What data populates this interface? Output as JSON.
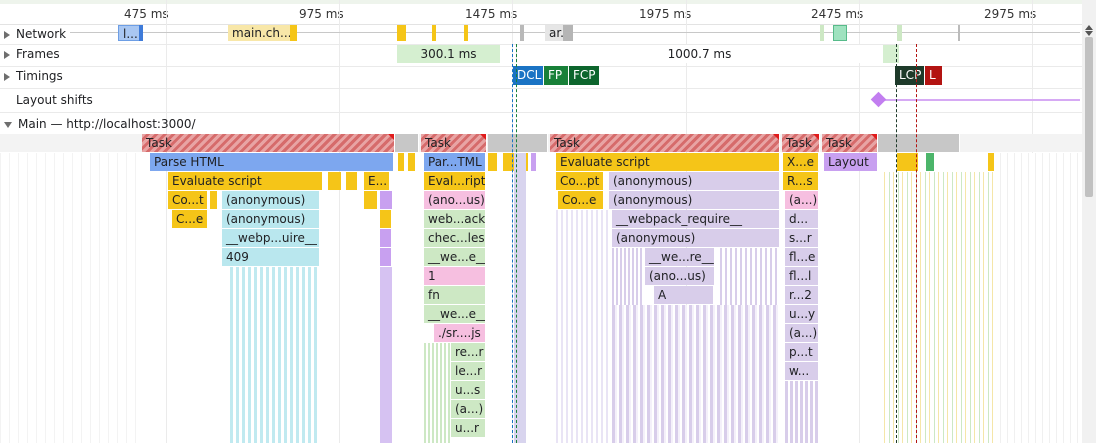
{
  "ruler": {
    "ticks": [
      "475 ms",
      "975 ms",
      "1475 ms",
      "1975 ms",
      "2475 ms",
      "2975 ms"
    ]
  },
  "tracks": {
    "network": "Network",
    "frames": "Frames",
    "timings": "Timings",
    "layout_shifts": "Layout shifts",
    "main": "Main — http://localhost:3000/"
  },
  "network_requests": [
    {
      "label": "l...",
      "color": "#a9c7f2"
    },
    {
      "label": "main.ch...",
      "color": "#f8e7a8"
    },
    {
      "label": "ar...",
      "color": "#e6e6e6"
    }
  ],
  "frames": [
    "300.1 ms",
    "1000.7 ms"
  ],
  "timings": {
    "dcl": "DCL",
    "fp": "FP",
    "fcp": "FCP",
    "lcp": "LCP",
    "l": "L"
  },
  "timing_colors": {
    "dcl": "#1a73c4",
    "fp": "#188038",
    "fcp": "#0d652d",
    "lcp": "#1e3a2a",
    "l": "#b31412"
  },
  "flame": {
    "task": "Task",
    "parse_html": "Parse HTML",
    "par_tml": "Par...TML",
    "evaluate_script": "Evaluate script",
    "evaluate_script_short": "E...",
    "eval_ript": "Eval...ript",
    "co_t": "Co...t",
    "c_e": "C...e",
    "anonymous": "(anonymous)",
    "ano_us": "(ano...us)",
    "anon_us2": "(ano...us)",
    "webp_uire": "__webp...uire__",
    "n409": "409",
    "web_ack": "web...ack",
    "chec_les": "chec...les",
    "we_e": "__we...e__",
    "one": "1",
    "fn": "fn",
    "we_e2": "__we...e__",
    "sr_js": "./sr....js",
    "re_r": "re...r",
    "le_r": "le...r",
    "u_s": "u...s",
    "a_paren": "(a...)",
    "u_r": "u...r",
    "co_pt": "Co...pt",
    "co_e": "Co...e",
    "webpack_require": "__webpack_require__",
    "we_re": "__we...re__",
    "a": "A",
    "x_e": "X...e",
    "r_s": "R...s",
    "a_dot": "(a...)",
    "d_dots": "d...",
    "s_r": "s...r",
    "fl_e": "fl...e",
    "fl_l": "fl...l",
    "r_2": "r...2",
    "u_y": "u...y",
    "a_dot2": "(a...)",
    "p_t": "p...t",
    "w_dots": "w...",
    "layout": "Layout"
  }
}
